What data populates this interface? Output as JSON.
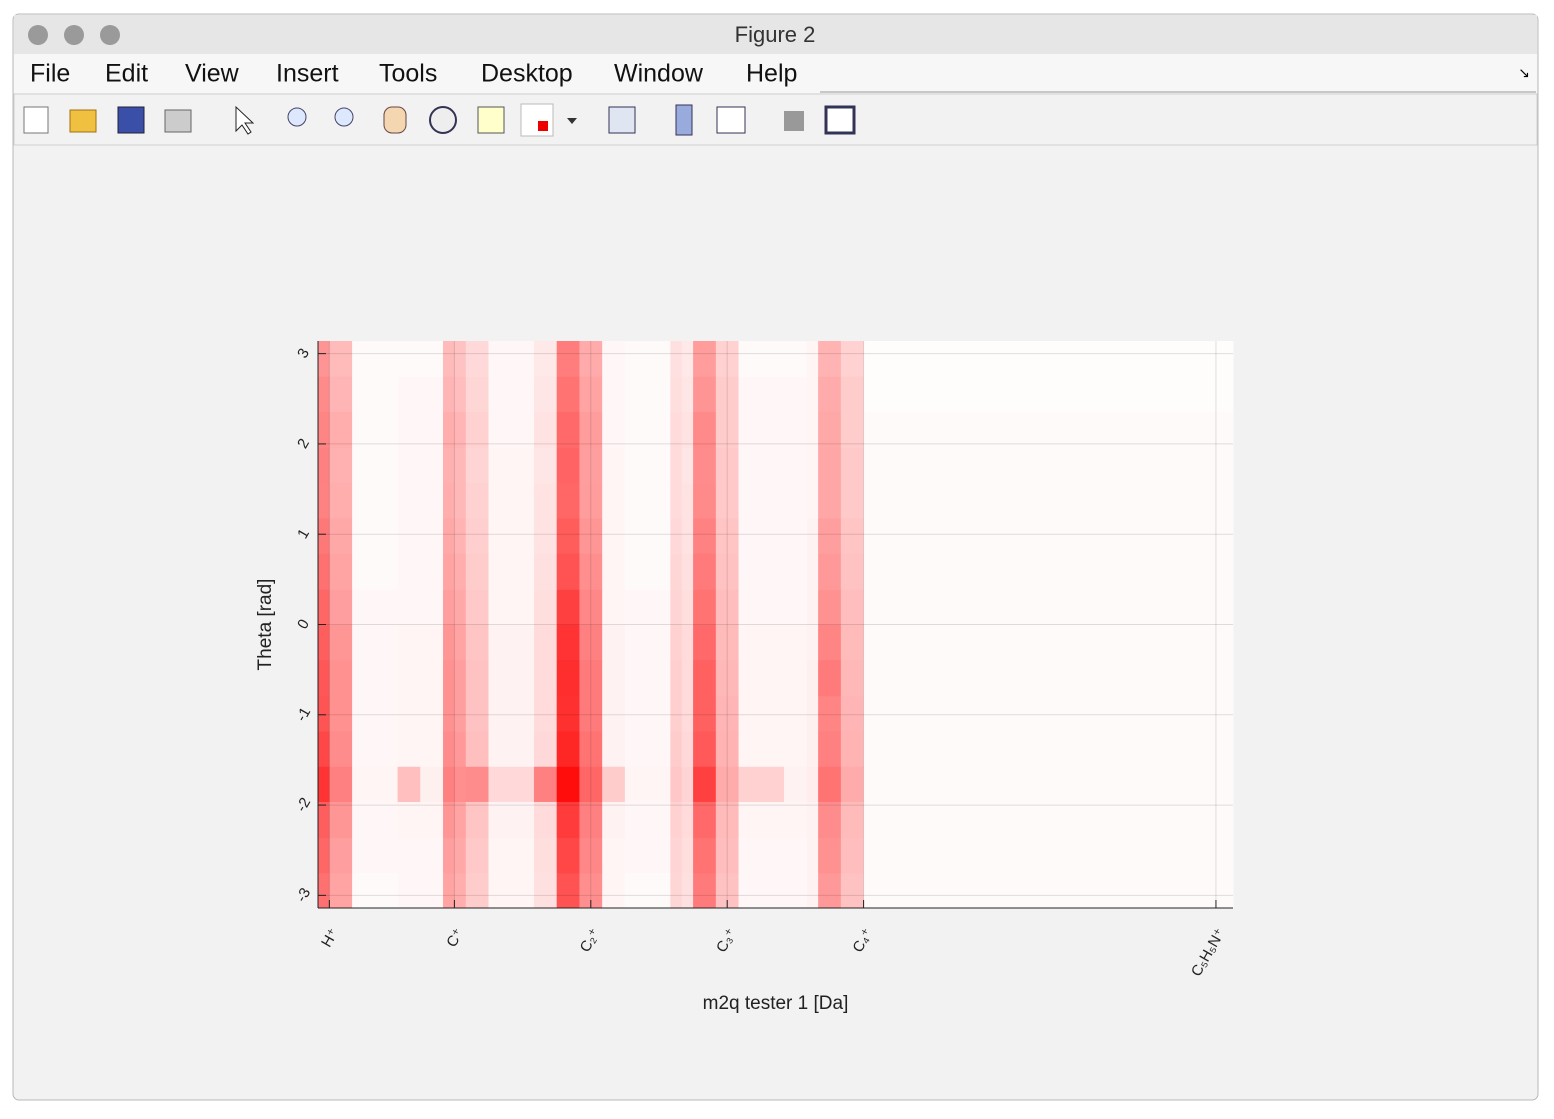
{
  "window": {
    "title": "Figure 2",
    "menu": [
      "File",
      "Edit",
      "View",
      "Insert",
      "Tools",
      "Desktop",
      "Window",
      "Help"
    ]
  },
  "chart_data": {
    "type": "heatmap",
    "xlabel": "m2q tester 1 [Da]",
    "ylabel": "Theta [rad]",
    "xlim": [
      0,
      80.5
    ],
    "ylim": [
      -3.14,
      3.14
    ],
    "xticks": [
      {
        "value": 1,
        "label": "H⁺"
      },
      {
        "value": 12,
        "label": "C⁺"
      },
      {
        "value": 24,
        "label": "C₂⁺"
      },
      {
        "value": 36,
        "label": "C₃⁺"
      },
      {
        "value": 48,
        "label": "C₄⁺"
      },
      {
        "value": 79,
        "label": "C₅H₅N⁺"
      }
    ],
    "yticks": [
      -3,
      -2,
      -1,
      0,
      1,
      2,
      3
    ],
    "grid": true,
    "clim": [
      0,
      100
    ],
    "colormap": [
      "#ffffff",
      "#ff0000"
    ],
    "xbins": [
      0,
      1,
      3,
      7,
      9,
      11,
      12,
      13,
      15,
      19,
      21,
      23,
      25,
      27,
      31,
      32,
      33,
      35,
      37,
      41,
      43,
      44,
      46,
      48,
      80.5
    ],
    "ybins": [
      -3.14,
      -2.75,
      -2.36,
      -1.96,
      -1.57,
      -1.18,
      -0.79,
      -0.39,
      0,
      0.39,
      0.79,
      1.18,
      1.57,
      1.96,
      2.36,
      2.75,
      3.14
    ],
    "z": [
      [
        56,
        36,
        2,
        3,
        3,
        36,
        32,
        20,
        4,
        12,
        68,
        44,
        4,
        2,
        16,
        12,
        52,
        24,
        3,
        3,
        5,
        40,
        24,
        2
      ],
      [
        60,
        38,
        3,
        3,
        3,
        38,
        34,
        21,
        4,
        13,
        72,
        47,
        4,
        3,
        17,
        13,
        55,
        26,
        3,
        3,
        5,
        43,
        26,
        2
      ],
      [
        63,
        41,
        3,
        4,
        4,
        41,
        36,
        23,
        5,
        14,
        77,
        50,
        5,
        3,
        18,
        14,
        59,
        27,
        4,
        4,
        5,
        45,
        27,
        2
      ],
      [
        80,
        50,
        4,
        25,
        6,
        50,
        44,
        45,
        15,
        50,
        95,
        60,
        20,
        4,
        22,
        17,
        75,
        33,
        18,
        5,
        7,
        55,
        33,
        2
      ],
      [
        72,
        45,
        3,
        4,
        4,
        45,
        40,
        25,
        5,
        15,
        85,
        55,
        5,
        3,
        20,
        15,
        65,
        30,
        4,
        4,
        6,
        50,
        30,
        2
      ],
      [
        67,
        43,
        3,
        4,
        4,
        43,
        38,
        24,
        5,
        14,
        81,
        52,
        5,
        3,
        19,
        14,
        62,
        29,
        4,
        4,
        6,
        48,
        29,
        2
      ],
      [
        66,
        43,
        3,
        4,
        4,
        43,
        38,
        24,
        5,
        14,
        82,
        52,
        5,
        3,
        19,
        14,
        62,
        28,
        4,
        4,
        6,
        52,
        28,
        2
      ],
      [
        63,
        41,
        3,
        4,
        4,
        41,
        36,
        23,
        5,
        14,
        80,
        50,
        5,
        3,
        18,
        14,
        59,
        27,
        4,
        4,
        5,
        48,
        27,
        2
      ],
      [
        60,
        38,
        3,
        3,
        3,
        38,
        34,
        21,
        4,
        13,
        75,
        47,
        4,
        3,
        17,
        13,
        55,
        26,
        3,
        3,
        5,
        43,
        26,
        2
      ],
      [
        56,
        36,
        2,
        3,
        3,
        36,
        32,
        20,
        4,
        12,
        68,
        44,
        4,
        2,
        16,
        12,
        52,
        24,
        3,
        3,
        5,
        40,
        24,
        2
      ],
      [
        53,
        34,
        2,
        3,
        3,
        34,
        30,
        19,
        4,
        11,
        64,
        41,
        4,
        2,
        15,
        11,
        49,
        23,
        3,
        3,
        5,
        38,
        23,
        2
      ],
      [
        49,
        32,
        2,
        3,
        3,
        32,
        28,
        18,
        4,
        11,
        60,
        39,
        4,
        2,
        14,
        11,
        46,
        21,
        3,
        3,
        4,
        35,
        21,
        2
      ],
      [
        50,
        31,
        2,
        3,
        3,
        31,
        28,
        17,
        4,
        10,
        61,
        38,
        4,
        2,
        14,
        10,
        45,
        21,
        3,
        3,
        4,
        35,
        21,
        2
      ],
      [
        48,
        32,
        2,
        3,
        3,
        32,
        29,
        18,
        3,
        11,
        59,
        39,
        3,
        2,
        14,
        11,
        46,
        20,
        3,
        3,
        4,
        34,
        20,
        2
      ],
      [
        46,
        29,
        2,
        3,
        3,
        29,
        26,
        16,
        3,
        10,
        55,
        36,
        3,
        2,
        13,
        10,
        42,
        20,
        3,
        3,
        4,
        33,
        20,
        1
      ],
      [
        42,
        27,
        2,
        2,
        2,
        27,
        24,
        15,
        3,
        9,
        51,
        33,
        3,
        2,
        12,
        9,
        39,
        18,
        2,
        2,
        4,
        30,
        18,
        1
      ]
    ]
  }
}
